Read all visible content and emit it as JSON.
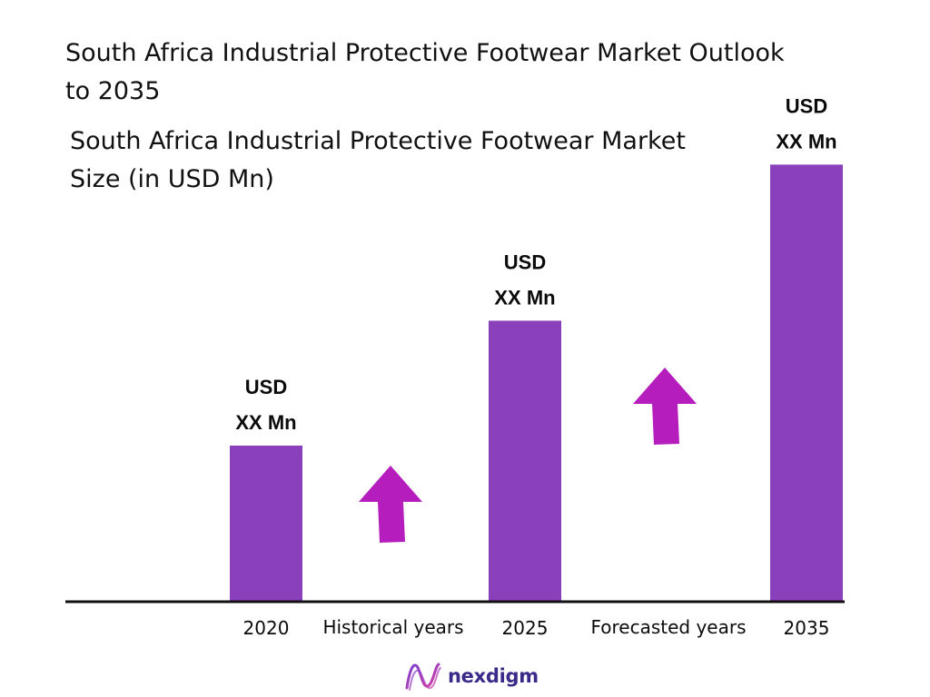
{
  "title": "South Africa Industrial Protective Footwear Market Outlook to 2035",
  "chart_data": {
    "type": "bar",
    "title": "South Africa Industrial Protective Footwear Market Size (in USD Mn)",
    "categories": [
      "2020",
      "2025",
      "2035"
    ],
    "values": [
      1,
      1.8,
      2.8
    ],
    "value_labels": [
      [
        "USD",
        "XX Mn"
      ],
      [
        "USD",
        "XX Mn"
      ],
      [
        "USD",
        "XX Mn"
      ]
    ],
    "period_labels": [
      "Historical years",
      "Forecasted years"
    ],
    "bar_color": "#8a3fbb",
    "arrow_color": "#b51dbd",
    "grid": false,
    "legend": "none"
  },
  "brand": {
    "name": "nexdigm",
    "color": "#3b2a8a"
  }
}
